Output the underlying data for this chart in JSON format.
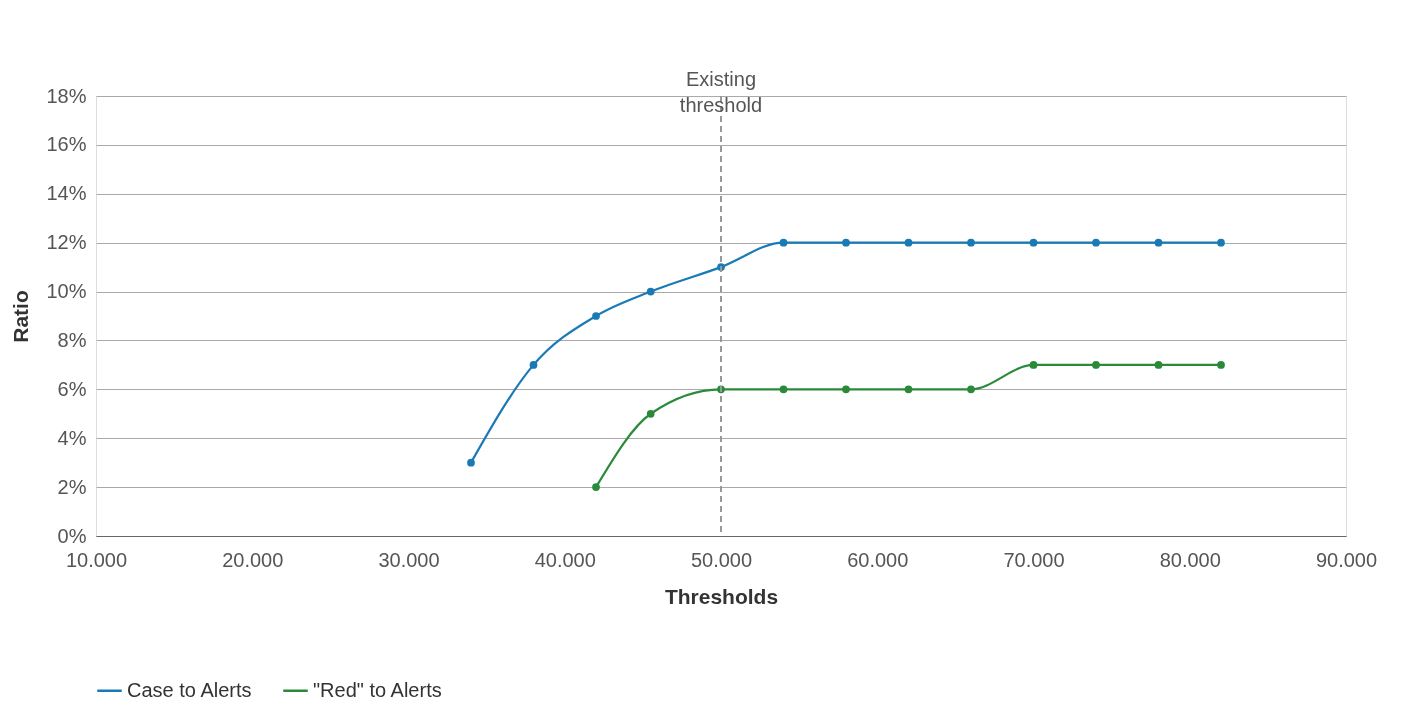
{
  "chart_data": {
    "type": "line",
    "xlabel": "Thresholds",
    "ylabel": "Ratio",
    "xlim": [
      10000,
      90000
    ],
    "xticks": [
      {
        "value": 10000,
        "label": "10.000"
      },
      {
        "value": 20000,
        "label": "20.000"
      },
      {
        "value": 30000,
        "label": "30.000"
      },
      {
        "value": 40000,
        "label": "40.000"
      },
      {
        "value": 50000,
        "label": "50.000"
      },
      {
        "value": 60000,
        "label": "60.000"
      },
      {
        "value": 70000,
        "label": "70.000"
      },
      {
        "value": 80000,
        "label": "80.000"
      },
      {
        "value": 90000,
        "label": "90.000"
      }
    ],
    "ylim": [
      0,
      18
    ],
    "yticks": [
      {
        "value": 0,
        "label": "0%"
      },
      {
        "value": 2,
        "label": "2%"
      },
      {
        "value": 4,
        "label": "4%"
      },
      {
        "value": 6,
        "label": "6%"
      },
      {
        "value": 8,
        "label": "8%"
      },
      {
        "value": 10,
        "label": "10%"
      },
      {
        "value": 12,
        "label": "12%"
      },
      {
        "value": 14,
        "label": "14%"
      },
      {
        "value": 16,
        "label": "16%"
      },
      {
        "value": 18,
        "label": "18%"
      }
    ],
    "series": [
      {
        "name": "Case to Alerts",
        "color": "#1a7ab5",
        "x": [
          34000,
          38000,
          42000,
          45500,
          50000,
          54000,
          58000,
          62000,
          66000,
          70000,
          74000,
          78000,
          82000
        ],
        "values": [
          3,
          7,
          9,
          10,
          11,
          12,
          12,
          12,
          12,
          12,
          12,
          12,
          12
        ]
      },
      {
        "name": "\"Red\" to Alerts",
        "color": "#2a8a3a",
        "x": [
          42000,
          45500,
          50000,
          54000,
          58000,
          62000,
          66000,
          70000,
          74000,
          78000,
          82000
        ],
        "values": [
          2,
          5,
          6,
          6,
          6,
          6,
          6,
          7,
          7,
          7,
          7
        ]
      }
    ],
    "ref_lines": [
      {
        "axis": "x",
        "value": 50000,
        "label": "Existing threshold",
        "color": "#999999",
        "line_style": "dashed"
      }
    ],
    "grid": "y",
    "legend": "bottom left",
    "marker": "circle",
    "line_style": "solid"
  }
}
